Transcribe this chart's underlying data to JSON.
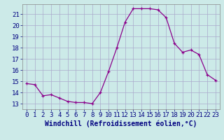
{
  "x": [
    0,
    1,
    2,
    3,
    4,
    5,
    6,
    7,
    8,
    9,
    10,
    11,
    12,
    13,
    14,
    15,
    16,
    17,
    18,
    19,
    20,
    21,
    22,
    23
  ],
  "y": [
    14.8,
    14.7,
    13.7,
    13.8,
    13.5,
    13.2,
    13.1,
    13.1,
    13.0,
    14.0,
    15.9,
    18.0,
    20.3,
    21.5,
    21.5,
    21.5,
    21.4,
    20.7,
    18.4,
    17.6,
    17.8,
    17.4,
    15.6,
    15.1
  ],
  "line_color": "#8B008B",
  "marker": "+",
  "marker_size": 3,
  "bg_color": "#cceae8",
  "grid_color": "#aaaacc",
  "xlabel": "Windchill (Refroidissement éolien,°C)",
  "xlabel_fontsize": 7,
  "ytick_values": [
    13,
    14,
    15,
    16,
    17,
    18,
    19,
    20,
    21
  ],
  "ylim": [
    12.5,
    21.9
  ],
  "xlim": [
    -0.5,
    23.5
  ],
  "tick_fontsize": 6.5
}
